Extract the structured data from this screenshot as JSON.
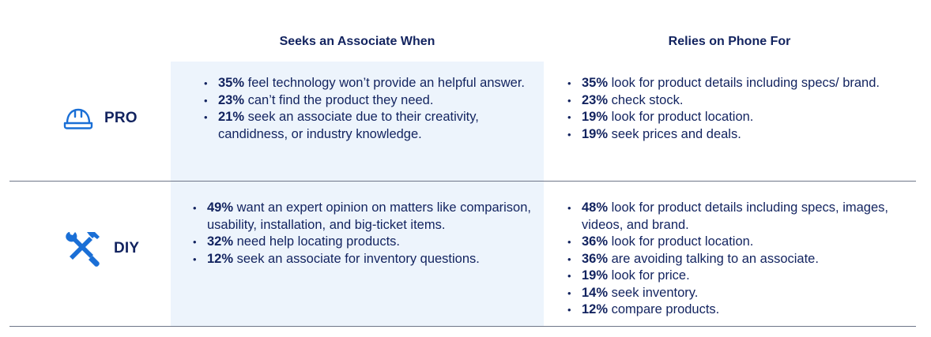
{
  "columns": {
    "associate": "Seeks an Associate When",
    "phone": "Relies on Phone For"
  },
  "colors": {
    "navy": "#12235f",
    "icon_blue": "#1a6fd6",
    "highlight_bg": "#edf4fc",
    "divider": "#6e7688"
  },
  "segments": {
    "pro": {
      "label": "PRO",
      "icon": "hard-hat-icon",
      "associate": [
        {
          "pct": "35%",
          "text": " feel technology won’t provide an helpful answer."
        },
        {
          "pct": "23%",
          "text": " can’t find the product they need."
        },
        {
          "pct": "21%",
          "text": " seek an associate due to their creativity, candidness, or industry knowledge."
        }
      ],
      "phone": [
        {
          "pct": "35%",
          "text": " look for product details including specs/ brand."
        },
        {
          "pct": "23%",
          "text": " check stock."
        },
        {
          "pct": "19%",
          "text": " look for product location."
        },
        {
          "pct": "19%",
          "text": " seek prices and deals."
        }
      ]
    },
    "diy": {
      "label": "DIY",
      "icon": "crossed-tools-icon",
      "associate": [
        {
          "pct": "49%",
          "text": " want an expert opinion on matters like comparison, usability, installation, and big-ticket items."
        },
        {
          "pct": "32%",
          "text": " need help locating products."
        },
        {
          "pct": "12%",
          "text": " seek an associate for inventory questions."
        }
      ],
      "phone": [
        {
          "pct": "48%",
          "text": " look for product details including specs, images, videos, and brand."
        },
        {
          "pct": "36%",
          "text": " look for product location."
        },
        {
          "pct": "36%",
          "text": " are avoiding talking to an associate."
        },
        {
          "pct": "19%",
          "text": " look for price."
        },
        {
          "pct": "14%",
          "text": " seek inventory."
        },
        {
          "pct": "12%",
          "text": " compare products."
        }
      ]
    }
  }
}
